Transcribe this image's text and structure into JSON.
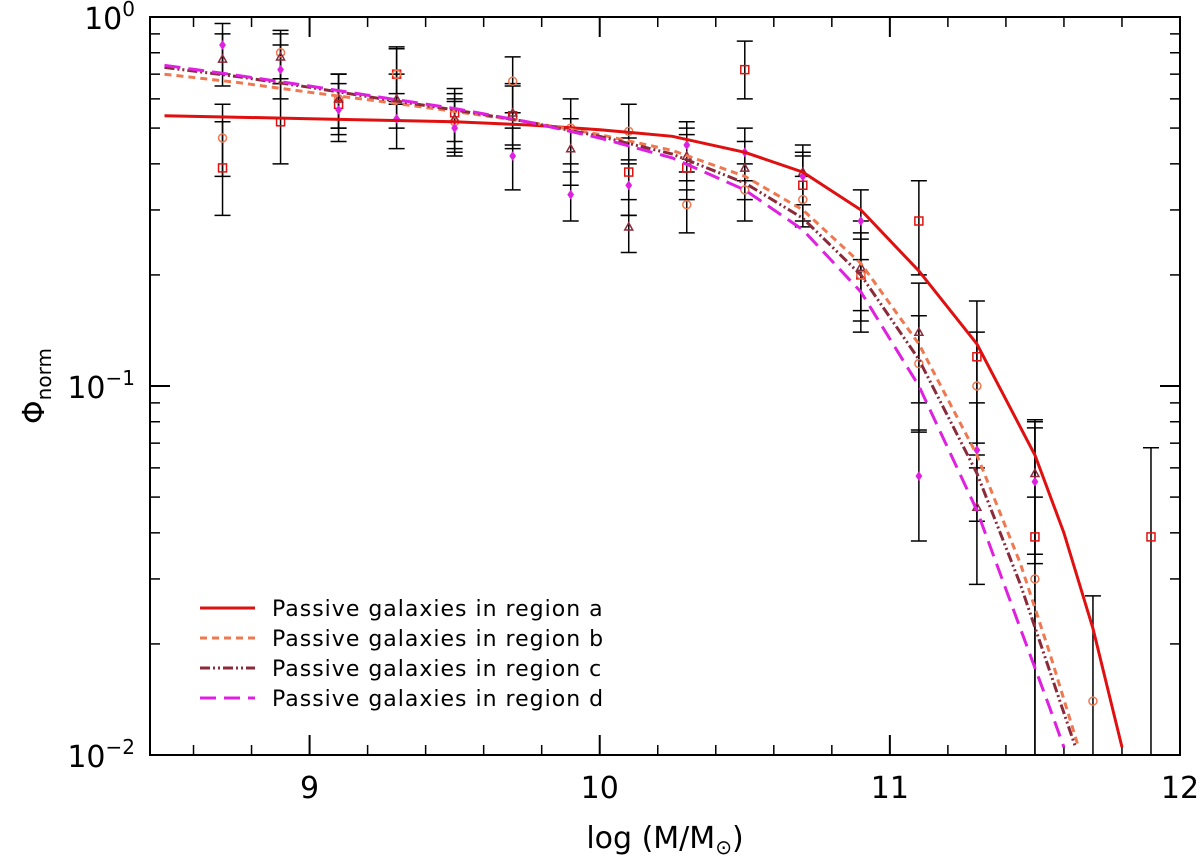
{
  "chart_data": {
    "type": "scatter",
    "title": "",
    "xlabel": "log (M/M",
    "xlabel_sun_symbol": "⊙",
    "xlabel_close": ")",
    "ylabel": "Φ",
    "ylabel_sub": "norm",
    "x_range": [
      8.45,
      12.0
    ],
    "y_range": [
      0.01,
      1.0
    ],
    "y_scale": "log",
    "x_ticks": [
      {
        "value": 9,
        "label": "9"
      },
      {
        "value": 10,
        "label": "10"
      },
      {
        "value": 11,
        "label": "11"
      },
      {
        "value": 12,
        "label": "12"
      }
    ],
    "y_ticks": [
      {
        "value": 1.0,
        "base": "10",
        "exp": "0"
      },
      {
        "value": 0.1,
        "base": "10",
        "exp": "−1"
      },
      {
        "value": 0.01,
        "base": "10",
        "exp": "−2"
      }
    ],
    "legend_position": "bottom-left",
    "series": [
      {
        "name": "Passive galaxies in region a",
        "color": "#e01010",
        "line_style": "solid",
        "marker": "square",
        "curve": [
          [
            8.5,
            0.54
          ],
          [
            8.75,
            0.535
          ],
          [
            9.0,
            0.53
          ],
          [
            9.25,
            0.525
          ],
          [
            9.5,
            0.52
          ],
          [
            9.75,
            0.51
          ],
          [
            10.0,
            0.495
          ],
          [
            10.25,
            0.475
          ],
          [
            10.5,
            0.43
          ],
          [
            10.7,
            0.38
          ],
          [
            10.9,
            0.3
          ],
          [
            11.1,
            0.205
          ],
          [
            11.3,
            0.13
          ],
          [
            11.5,
            0.065
          ],
          [
            11.6,
            0.04
          ],
          [
            11.7,
            0.022
          ],
          [
            11.8,
            0.0105
          ]
        ],
        "points": [
          {
            "x": 8.7,
            "y": 0.39,
            "err_low": 0.29,
            "err_high": 0.52
          },
          {
            "x": 8.9,
            "y": 0.52,
            "err_low": 0.4,
            "err_high": 0.66
          },
          {
            "x": 9.1,
            "y": 0.58,
            "err_low": 0.48,
            "err_high": 0.7
          },
          {
            "x": 9.3,
            "y": 0.7,
            "err_low": 0.58,
            "err_high": 0.83
          },
          {
            "x": 9.5,
            "y": 0.55,
            "err_low": 0.46,
            "err_high": 0.64
          },
          {
            "x": 9.7,
            "y": 0.54,
            "err_low": 0.44,
            "err_high": 0.65
          },
          {
            "x": 10.1,
            "y": 0.38,
            "err_low": 0.29,
            "err_high": 0.47
          },
          {
            "x": 10.3,
            "y": 0.39,
            "err_low": 0.32,
            "err_high": 0.48
          },
          {
            "x": 10.5,
            "y": 0.72,
            "err_low": 0.6,
            "err_high": 0.86
          },
          {
            "x": 10.7,
            "y": 0.35,
            "err_low": 0.28,
            "err_high": 0.42
          },
          {
            "x": 10.9,
            "y": 0.2,
            "err_low": 0.14,
            "err_high": 0.28
          },
          {
            "x": 11.1,
            "y": 0.28,
            "err_low": 0.2,
            "err_high": 0.36
          },
          {
            "x": 11.3,
            "y": 0.12,
            "err_low": 0.07,
            "err_high": 0.17
          },
          {
            "x": 11.5,
            "y": 0.039,
            "err_low": 0.01,
            "err_high": 0.081
          },
          {
            "x": 11.9,
            "y": 0.039,
            "err_low": 0.01,
            "err_high": 0.068
          }
        ]
      },
      {
        "name": "Passive galaxies in region b",
        "color": "#f07850",
        "line_style": "dashed",
        "marker": "circle",
        "curve": [
          [
            8.5,
            0.7
          ],
          [
            8.75,
            0.665
          ],
          [
            9.0,
            0.625
          ],
          [
            9.25,
            0.59
          ],
          [
            9.5,
            0.555
          ],
          [
            9.75,
            0.52
          ],
          [
            10.0,
            0.48
          ],
          [
            10.25,
            0.435
          ],
          [
            10.5,
            0.37
          ],
          [
            10.7,
            0.3
          ],
          [
            10.9,
            0.215
          ],
          [
            11.1,
            0.13
          ],
          [
            11.3,
            0.065
          ],
          [
            11.45,
            0.033
          ],
          [
            11.55,
            0.019
          ],
          [
            11.65,
            0.0105
          ]
        ],
        "points": [
          {
            "x": 8.7,
            "y": 0.47,
            "err_low": 0.37,
            "err_high": 0.58
          },
          {
            "x": 8.9,
            "y": 0.8,
            "err_low": 0.68,
            "err_high": 0.92
          },
          {
            "x": 9.1,
            "y": 0.6,
            "err_low": 0.5,
            "err_high": 0.7
          },
          {
            "x": 9.3,
            "y": 0.7,
            "err_low": 0.59,
            "err_high": 0.82
          },
          {
            "x": 9.5,
            "y": 0.52,
            "err_low": 0.43,
            "err_high": 0.6
          },
          {
            "x": 9.7,
            "y": 0.67,
            "err_low": 0.55,
            "err_high": 0.78
          },
          {
            "x": 9.9,
            "y": 0.5,
            "err_low": 0.4,
            "err_high": 0.6
          },
          {
            "x": 10.1,
            "y": 0.49,
            "err_low": 0.4,
            "err_high": 0.58
          },
          {
            "x": 10.3,
            "y": 0.31,
            "err_low": 0.26,
            "err_high": 0.36
          },
          {
            "x": 10.5,
            "y": 0.34,
            "err_low": 0.28,
            "err_high": 0.4
          },
          {
            "x": 10.7,
            "y": 0.32,
            "err_low": 0.27,
            "err_high": 0.37
          },
          {
            "x": 10.9,
            "y": 0.2,
            "err_low": 0.15,
            "err_high": 0.25
          },
          {
            "x": 11.1,
            "y": 0.115,
            "err_low": 0.075,
            "err_high": 0.155
          },
          {
            "x": 11.3,
            "y": 0.1,
            "err_low": 0.06,
            "err_high": 0.14
          },
          {
            "x": 11.5,
            "y": 0.03,
            "err_low": 0.01,
            "err_high": 0.05
          },
          {
            "x": 11.7,
            "y": 0.014,
            "err_low": 0.006,
            "err_high": 0.027
          }
        ]
      },
      {
        "name": "Passive galaxies in region c",
        "color": "#8b2a3a",
        "line_style": "dash-dot-dot",
        "marker": "triangle",
        "curve": [
          [
            8.5,
            0.73
          ],
          [
            8.75,
            0.69
          ],
          [
            9.0,
            0.645
          ],
          [
            9.25,
            0.6
          ],
          [
            9.5,
            0.56
          ],
          [
            9.75,
            0.52
          ],
          [
            10.0,
            0.475
          ],
          [
            10.25,
            0.425
          ],
          [
            10.5,
            0.355
          ],
          [
            10.7,
            0.285
          ],
          [
            10.9,
            0.2
          ],
          [
            11.1,
            0.118
          ],
          [
            11.3,
            0.058
          ],
          [
            11.45,
            0.029
          ],
          [
            11.55,
            0.017
          ],
          [
            11.64,
            0.0105
          ]
        ],
        "points": [
          {
            "x": 8.7,
            "y": 0.77,
            "err_low": 0.65,
            "err_high": 0.9
          },
          {
            "x": 8.9,
            "y": 0.78,
            "err_low": 0.66,
            "err_high": 0.9
          },
          {
            "x": 9.1,
            "y": 0.6,
            "err_low": 0.5,
            "err_high": 0.7
          },
          {
            "x": 9.3,
            "y": 0.6,
            "err_low": 0.5,
            "err_high": 0.7
          },
          {
            "x": 9.5,
            "y": 0.53,
            "err_low": 0.44,
            "err_high": 0.62
          },
          {
            "x": 9.7,
            "y": 0.55,
            "err_low": 0.45,
            "err_high": 0.66
          },
          {
            "x": 9.9,
            "y": 0.44,
            "err_low": 0.35,
            "err_high": 0.53
          },
          {
            "x": 10.1,
            "y": 0.27,
            "err_low": 0.23,
            "err_high": 0.32
          },
          {
            "x": 10.3,
            "y": 0.42,
            "err_low": 0.34,
            "err_high": 0.5
          },
          {
            "x": 10.5,
            "y": 0.39,
            "err_low": 0.32,
            "err_high": 0.46
          },
          {
            "x": 10.7,
            "y": 0.38,
            "err_low": 0.31,
            "err_high": 0.45
          },
          {
            "x": 10.9,
            "y": 0.21,
            "err_low": 0.16,
            "err_high": 0.26
          },
          {
            "x": 11.1,
            "y": 0.14,
            "err_low": 0.09,
            "err_high": 0.19
          },
          {
            "x": 11.3,
            "y": 0.047,
            "err_low": 0.029,
            "err_high": 0.065
          },
          {
            "x": 11.5,
            "y": 0.058,
            "err_low": 0.035,
            "err_high": 0.08
          }
        ]
      },
      {
        "name": "Passive galaxies in region d",
        "color": "#e020e0",
        "line_style": "long-dashed",
        "marker": "diamond",
        "curve": [
          [
            8.5,
            0.74
          ],
          [
            8.75,
            0.695
          ],
          [
            9.0,
            0.65
          ],
          [
            9.25,
            0.605
          ],
          [
            9.5,
            0.565
          ],
          [
            9.75,
            0.52
          ],
          [
            10.0,
            0.47
          ],
          [
            10.25,
            0.415
          ],
          [
            10.5,
            0.34
          ],
          [
            10.7,
            0.265
          ],
          [
            10.9,
            0.18
          ],
          [
            11.1,
            0.1
          ],
          [
            11.3,
            0.046
          ],
          [
            11.45,
            0.022
          ],
          [
            11.55,
            0.0135
          ],
          [
            11.6,
            0.0105
          ]
        ],
        "points": [
          {
            "x": 8.7,
            "y": 0.84,
            "err_low": 0.7,
            "err_high": 0.96
          },
          {
            "x": 8.9,
            "y": 0.72,
            "err_low": 0.6,
            "err_high": 0.84
          },
          {
            "x": 9.1,
            "y": 0.56,
            "err_low": 0.46,
            "err_high": 0.66
          },
          {
            "x": 9.3,
            "y": 0.53,
            "err_low": 0.44,
            "err_high": 0.62
          },
          {
            "x": 9.5,
            "y": 0.5,
            "err_low": 0.42,
            "err_high": 0.59
          },
          {
            "x": 9.7,
            "y": 0.42,
            "err_low": 0.34,
            "err_high": 0.5
          },
          {
            "x": 9.9,
            "y": 0.33,
            "err_low": 0.28,
            "err_high": 0.38
          },
          {
            "x": 10.1,
            "y": 0.35,
            "err_low": 0.29,
            "err_high": 0.41
          },
          {
            "x": 10.3,
            "y": 0.45,
            "err_low": 0.38,
            "err_high": 0.52
          },
          {
            "x": 10.5,
            "y": 0.43,
            "err_low": 0.36,
            "err_high": 0.5
          },
          {
            "x": 10.7,
            "y": 0.37,
            "err_low": 0.31,
            "err_high": 0.43
          },
          {
            "x": 10.9,
            "y": 0.28,
            "err_low": 0.22,
            "err_high": 0.34
          },
          {
            "x": 11.1,
            "y": 0.057,
            "err_low": 0.038,
            "err_high": 0.076
          },
          {
            "x": 11.3,
            "y": 0.067,
            "err_low": 0.043,
            "err_high": 0.09
          },
          {
            "x": 11.5,
            "y": 0.055,
            "err_low": 0.033,
            "err_high": 0.077
          }
        ]
      }
    ]
  }
}
